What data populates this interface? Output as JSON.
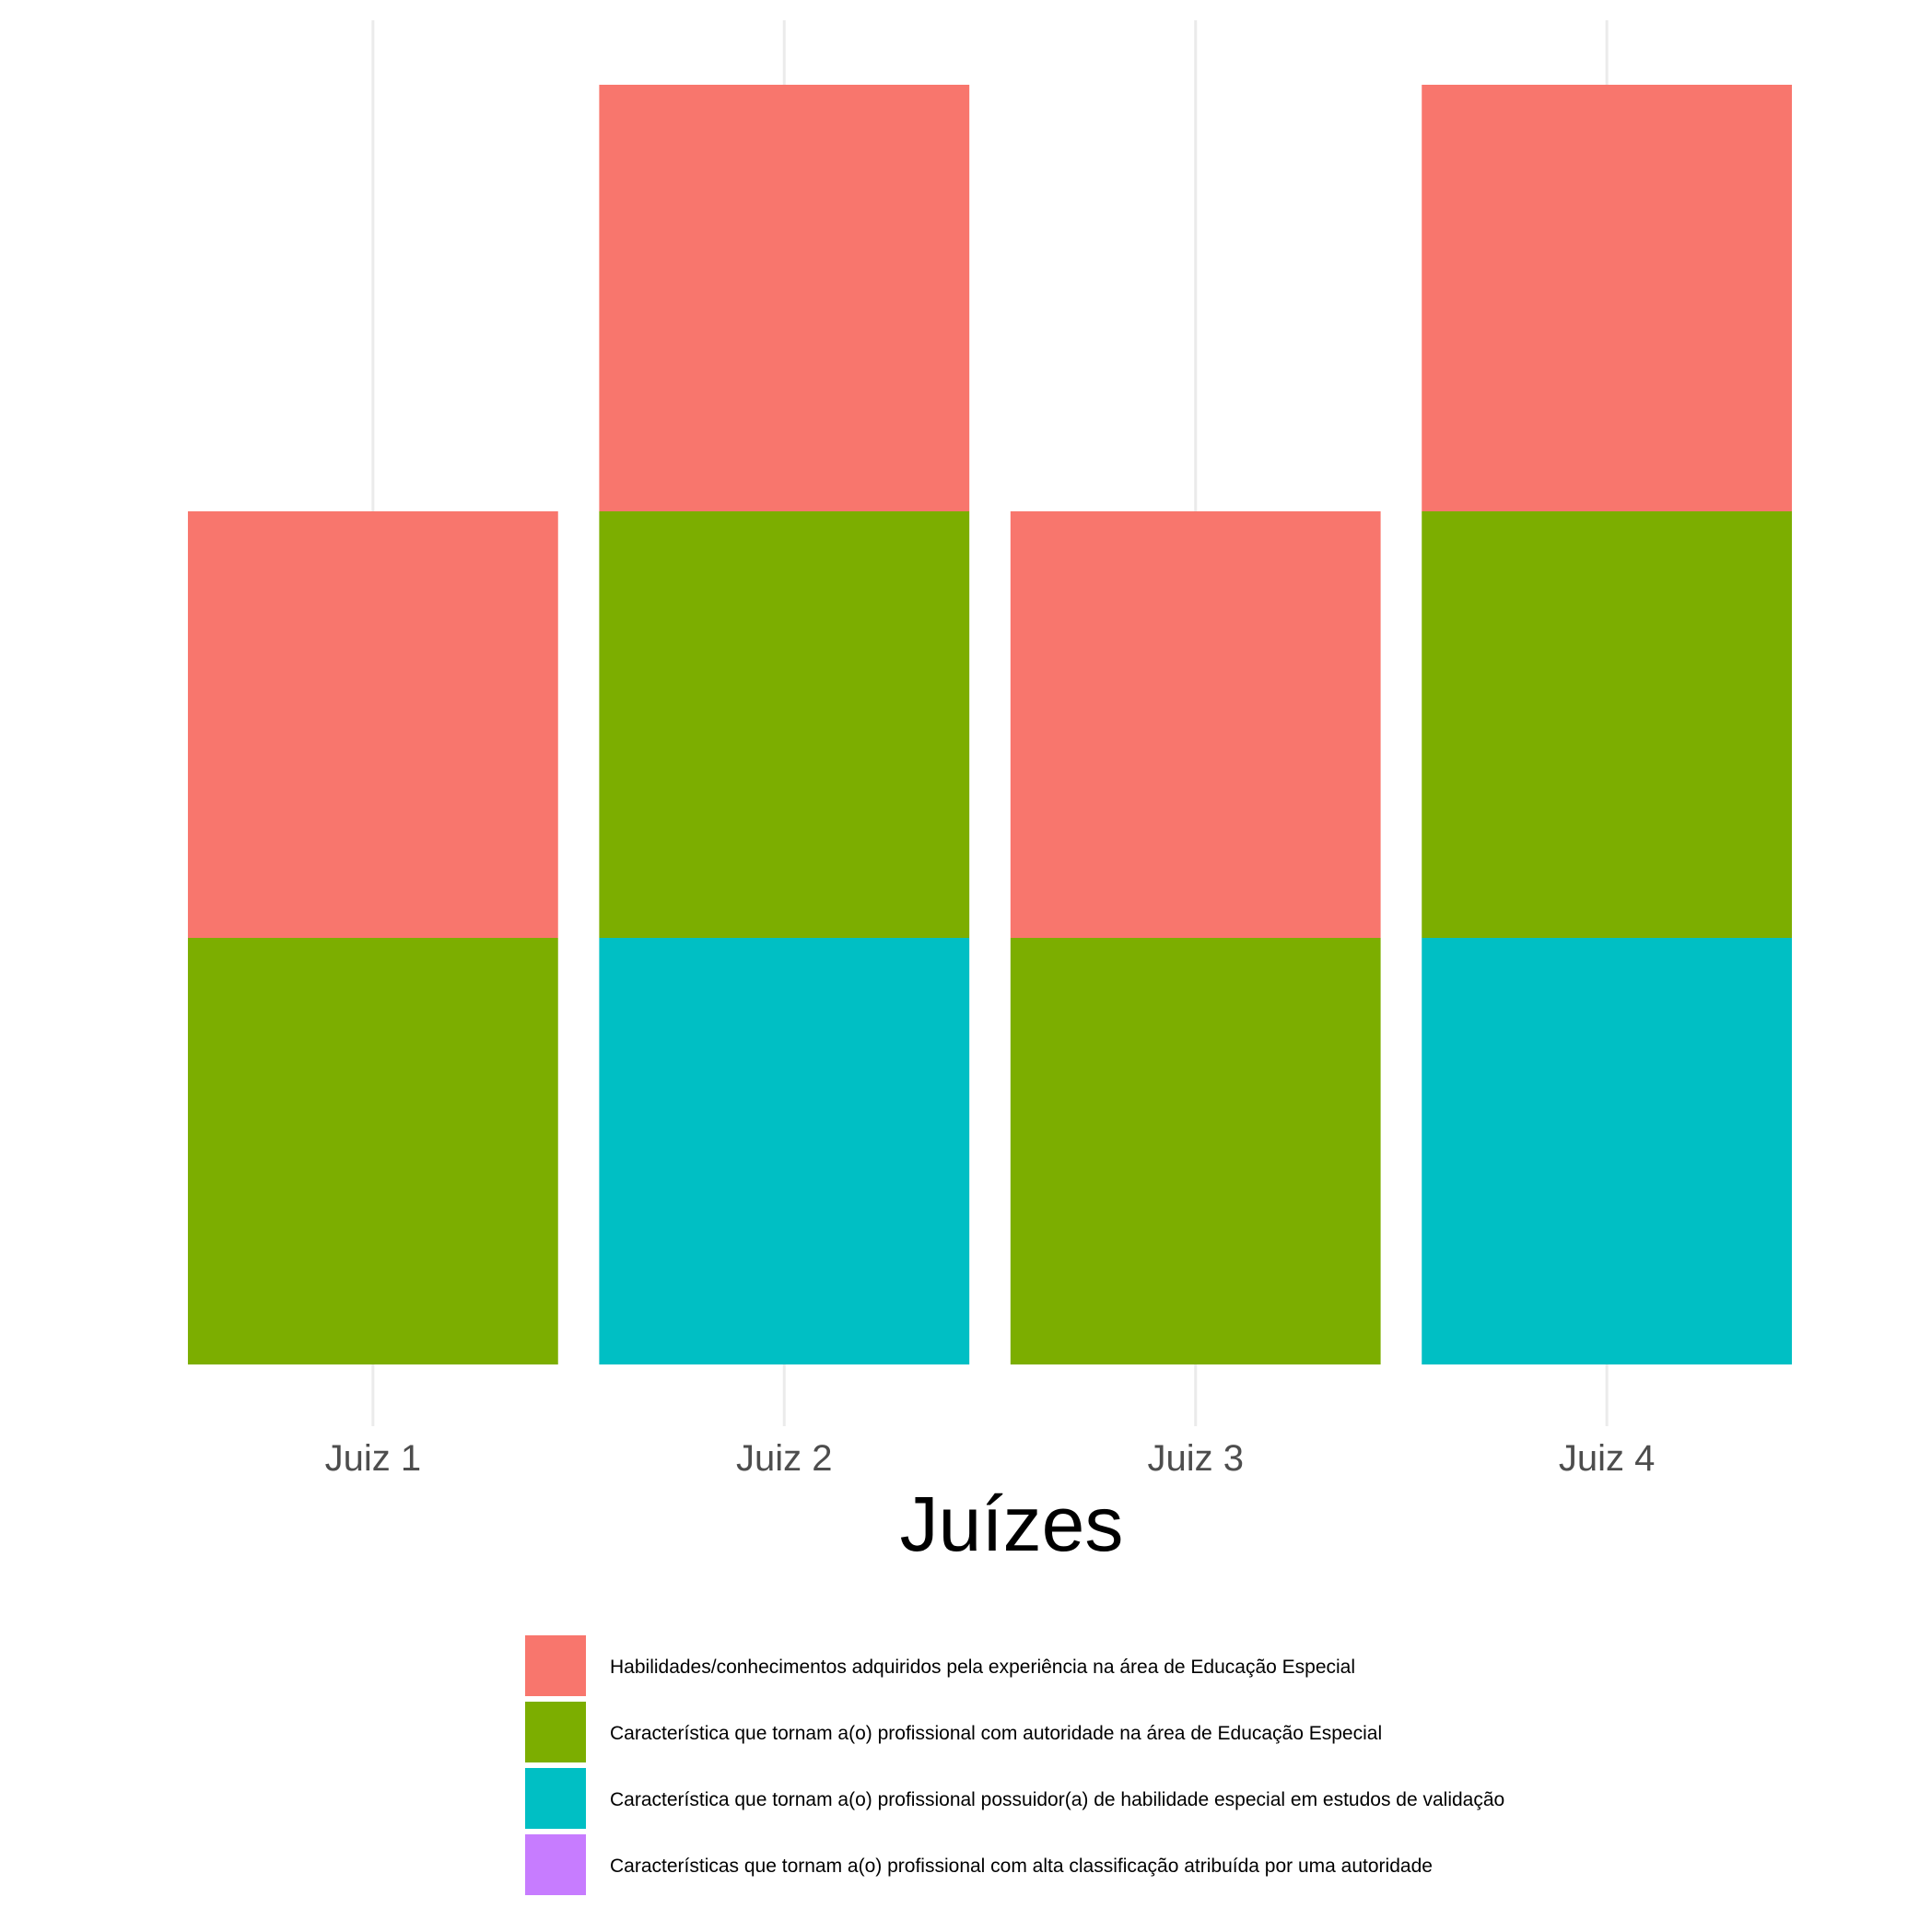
{
  "chart_data": {
    "type": "bar",
    "stacked": true,
    "categories": [
      "Juiz 1",
      "Juiz 2",
      "Juiz 3",
      "Juiz 4"
    ],
    "xlabel": "Juízes",
    "ylabel": "",
    "ylim": [
      0,
      3
    ],
    "grid": "vertical major gridlines only",
    "legend_position": "bottom",
    "y_axis_visible": false,
    "series": [
      {
        "name": "Habilidades/conhecimentos adquiridos pela experiência na área de Educação Especial",
        "color": "#F8766D",
        "values": [
          1,
          1,
          1,
          1
        ]
      },
      {
        "name": "Característica que tornam a(o) profissional com autoridade na área de Educação Especial",
        "color": "#7CAE00",
        "values": [
          1,
          1,
          1,
          1
        ]
      },
      {
        "name": "Característica que tornam a(o) profissional possuidor(a) de habilidade especial em estudos de validação",
        "color": "#00BFC4",
        "values": [
          0,
          1,
          0,
          1
        ]
      },
      {
        "name": "Características que tornam a(o) profissional com alta classificação atribuída por uma autoridade",
        "color": "#C77CFF",
        "values": [
          0,
          0,
          0,
          0
        ]
      }
    ]
  }
}
